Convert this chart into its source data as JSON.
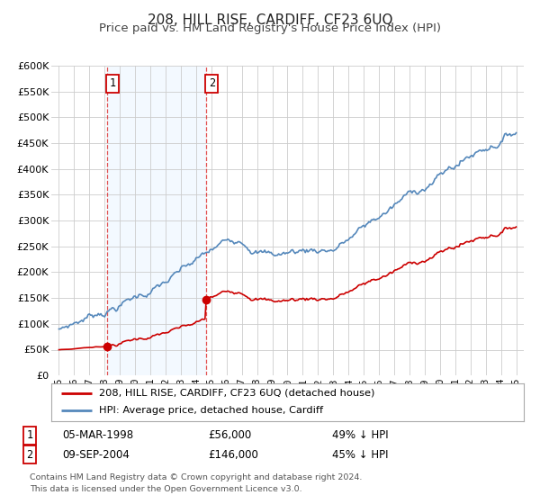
{
  "title": "208, HILL RISE, CARDIFF, CF23 6UQ",
  "subtitle": "Price paid vs. HM Land Registry's House Price Index (HPI)",
  "title_fontsize": 11,
  "subtitle_fontsize": 9.5,
  "background_color": "#ffffff",
  "plot_bg_color": "#ffffff",
  "grid_color": "#cccccc",
  "ylim": [
    0,
    600000
  ],
  "yticks": [
    0,
    50000,
    100000,
    150000,
    200000,
    250000,
    300000,
    350000,
    400000,
    450000,
    500000,
    550000,
    600000
  ],
  "ytick_labels": [
    "£0",
    "£50K",
    "£100K",
    "£150K",
    "£200K",
    "£250K",
    "£300K",
    "£350K",
    "£400K",
    "£450K",
    "£500K",
    "£550K",
    "£600K"
  ],
  "xlim_start": 1994.5,
  "xlim_end": 2025.5,
  "xtick_positions": [
    1995,
    1996,
    1997,
    1998,
    1999,
    2000,
    2001,
    2002,
    2003,
    2004,
    2005,
    2006,
    2007,
    2008,
    2009,
    2010,
    2011,
    2012,
    2013,
    2014,
    2015,
    2016,
    2017,
    2018,
    2019,
    2020,
    2021,
    2022,
    2023,
    2024,
    2025
  ],
  "xtick_labels": [
    "95",
    "96",
    "97",
    "98",
    "99",
    "00",
    "01",
    "02",
    "03",
    "04",
    "05",
    "06",
    "07",
    "08",
    "09",
    "10",
    "11",
    "12",
    "13",
    "14",
    "15",
    "16",
    "17",
    "18",
    "19",
    "20",
    "21",
    "22",
    "23",
    "24",
    "25"
  ],
  "hpi_color": "#5588bb",
  "price_color": "#cc0000",
  "sale1_date": 1998.17,
  "sale1_price": 56000,
  "sale1_label": "1",
  "sale2_date": 2004.67,
  "sale2_price": 146000,
  "sale2_label": "2",
  "shaded_color": "#ddeeff",
  "legend_label_price": "208, HILL RISE, CARDIFF, CF23 6UQ (detached house)",
  "legend_label_hpi": "HPI: Average price, detached house, Cardiff",
  "table_row1": [
    "1",
    "05-MAR-1998",
    "£56,000",
    "49% ↓ HPI"
  ],
  "table_row2": [
    "2",
    "09-SEP-2004",
    "£146,000",
    "45% ↓ HPI"
  ],
  "footer_line1": "Contains HM Land Registry data © Crown copyright and database right 2024.",
  "footer_line2": "This data is licensed under the Open Government Licence v3.0."
}
